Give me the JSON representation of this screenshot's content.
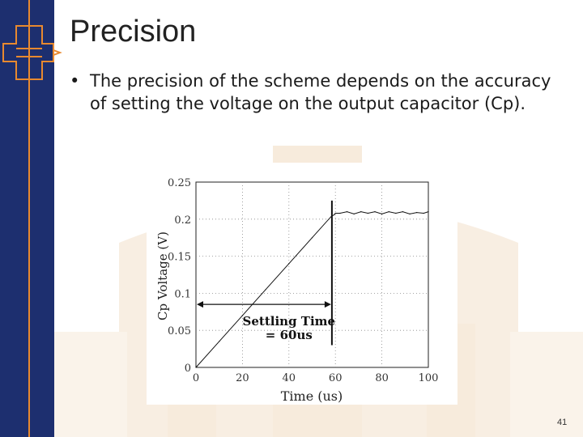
{
  "slide": {
    "title": "Precision",
    "bullet_mark": "•",
    "bullet_text": "The precision of the scheme depends on the accuracy of setting the voltage on the output capacitor (Cp).",
    "page_number": "41"
  },
  "colors": {
    "sidebar": "#1d2f6f",
    "accent": "#e8892f",
    "background_decoration": "#f6e8d7"
  },
  "chart_data": {
    "type": "line",
    "xlabel": "Time (us)",
    "ylabel": "Cp Voltage (V)",
    "xlim": [
      0,
      100
    ],
    "ylim": [
      0,
      0.25
    ],
    "x_ticks": [
      "0",
      "20",
      "40",
      "60",
      "80",
      "100"
    ],
    "y_ticks": [
      "0",
      "0.05",
      "0.1",
      "0.15",
      "0.2",
      "0.25"
    ],
    "grid": true,
    "series": [
      {
        "x": [
          0,
          10,
          20,
          30,
          40,
          50,
          58,
          59.5,
          60,
          62,
          65,
          68,
          71,
          74,
          77,
          80,
          83,
          86,
          89,
          92,
          95,
          98,
          100
        ],
        "y": [
          0,
          0.035,
          0.07,
          0.105,
          0.14,
          0.175,
          0.203,
          0.206,
          0.208,
          0.208,
          0.21,
          0.207,
          0.21,
          0.208,
          0.21,
          0.207,
          0.21,
          0.208,
          0.21,
          0.207,
          0.209,
          0.208,
          0.21
        ]
      }
    ],
    "annotations": {
      "settling_line_1": "Settling Time",
      "settling_line_2": "= 60us",
      "marker_x": 58.5,
      "arrow_y": 0.085
    }
  }
}
